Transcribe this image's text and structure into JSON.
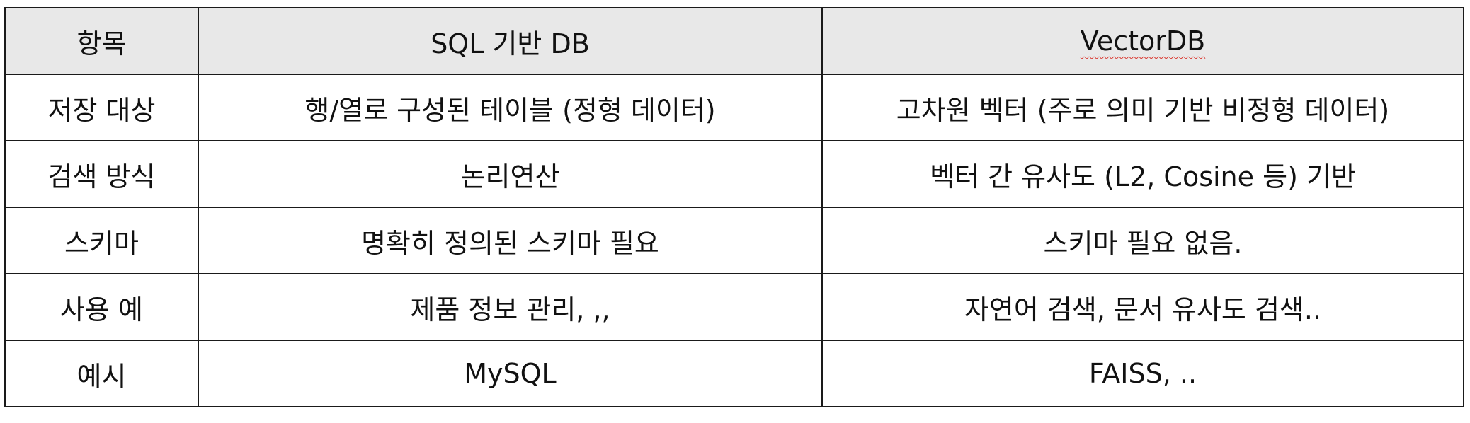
{
  "table": {
    "headers": [
      "항목",
      "SQL 기반 DB",
      "VectorDB"
    ],
    "rows": [
      [
        "저장 대상",
        "행/열로 구성된 테이블 (정형 데이터)",
        "고차원 벡터 (주로 의미 기반 비정형 데이터)"
      ],
      [
        "검색 방식",
        "논리연산",
        "벡터 간 유사도 (L2, Cosine 등) 기반"
      ],
      [
        "스키마",
        "명확히 정의된 스키마 필요",
        "스키마 필요 없음."
      ],
      [
        "사용 예",
        "제품 정보 관리, ,,",
        "자연어 검색, 문서 유사도 검색.."
      ],
      [
        "예시",
        "MySQL",
        "FAISS, .."
      ]
    ]
  },
  "colors": {
    "header_background": "#e8e8e8",
    "border": "#1a1a1a",
    "text": "#111111",
    "spellcheck_underline": "#d9342b"
  }
}
